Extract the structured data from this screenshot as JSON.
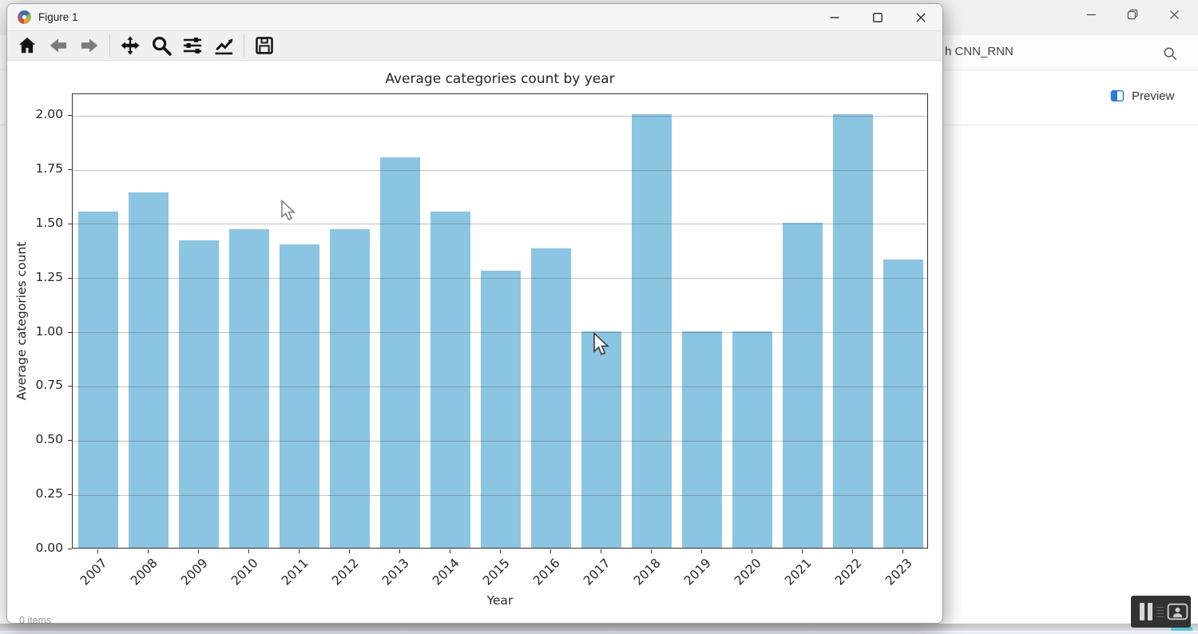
{
  "figure_window": {
    "title": "Figure 1",
    "window_controls": [
      "minimize",
      "maximize",
      "close"
    ],
    "toolbar_icons": [
      "home",
      "back",
      "forward",
      "pan",
      "zoom-to-rect",
      "configure-subplots",
      "customize-plot",
      "save"
    ]
  },
  "chart_data": {
    "type": "bar",
    "title": "Average categories count by year",
    "xlabel": "Year",
    "ylabel": "Average categories count",
    "categories": [
      "2007",
      "2008",
      "2009",
      "2010",
      "2011",
      "2012",
      "2013",
      "2014",
      "2015",
      "2016",
      "2017",
      "2018",
      "2019",
      "2020",
      "2021",
      "2022",
      "2023"
    ],
    "values": [
      1.55,
      1.64,
      1.42,
      1.47,
      1.4,
      1.47,
      1.8,
      1.55,
      1.28,
      1.38,
      1.0,
      2.0,
      1.0,
      1.0,
      1.5,
      2.0,
      1.33
    ],
    "ylim": [
      0,
      2.1
    ],
    "ytick_values": [
      0,
      0.25,
      0.5,
      0.75,
      1.0,
      1.25,
      1.5,
      1.75,
      2.0
    ],
    "ytick_labels": [
      "0.00",
      "0.25",
      "0.50",
      "0.75",
      "1.00",
      "1.25",
      "1.50",
      "1.75",
      "2.00"
    ],
    "bar_color": "#8cc5e1",
    "grid": true,
    "legend_position": "none"
  },
  "background_window": {
    "window_controls": [
      "minimize",
      "restore",
      "close"
    ],
    "search_text": "h CNN_RNN",
    "preview_label": "Preview",
    "status_text": "0 items",
    "accent_color": "#2b7cd3"
  },
  "recording_overlay": {
    "buttons": [
      "pause",
      "camera"
    ],
    "accent_color": "#58c3d9"
  }
}
